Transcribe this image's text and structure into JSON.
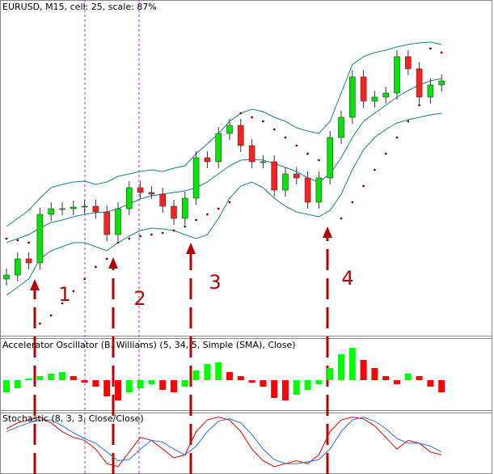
{
  "chart_data": [
    {
      "type": "candlestick",
      "title": "EURUSD, M15, cell: 25, scale: 87%",
      "ylim": [
        0,
        415
      ],
      "open": [
        70,
        75,
        95,
        90,
        150,
        157,
        157,
        159,
        160,
        153,
        125,
        157,
        183,
        177,
        175,
        160,
        145,
        170,
        220,
        215,
        250,
        260,
        235,
        215,
        215,
        180,
        200,
        195,
        165,
        195,
        245,
        270,
        320,
        290,
        295,
        300,
        345,
        330,
        295,
        310
      ],
      "high": [
        83,
        103,
        103,
        158,
        165,
        165,
        167,
        168,
        168,
        161,
        165,
        191,
        191,
        185,
        183,
        168,
        178,
        228,
        228,
        258,
        268,
        268,
        243,
        223,
        223,
        208,
        208,
        203,
        203,
        253,
        278,
        328,
        328,
        303,
        308,
        353,
        353,
        338,
        318,
        323
      ],
      "low": [
        62,
        67,
        82,
        82,
        142,
        149,
        149,
        151,
        145,
        117,
        117,
        149,
        169,
        169,
        152,
        137,
        137,
        162,
        207,
        207,
        242,
        227,
        207,
        207,
        172,
        172,
        187,
        157,
        157,
        187,
        237,
        262,
        282,
        282,
        287,
        292,
        322,
        287,
        287,
        302
      ],
      "close": [
        75,
        95,
        90,
        150,
        157,
        157,
        159,
        160,
        153,
        125,
        157,
        183,
        177,
        175,
        160,
        145,
        170,
        220,
        215,
        250,
        260,
        235,
        215,
        215,
        180,
        200,
        195,
        165,
        195,
        245,
        270,
        320,
        290,
        295,
        300,
        345,
        330,
        295,
        310,
        315
      ],
      "up_color": "#00e600",
      "down_color": "#ff2020",
      "wick_color": "#333333",
      "bands": {
        "color": "#1a7f8a",
        "upper": [
          135,
          145,
          155,
          170,
          183,
          187,
          190,
          191,
          187,
          190,
          197,
          200,
          203,
          205,
          203,
          207,
          210,
          225,
          237,
          250,
          265,
          275,
          280,
          277,
          270,
          265,
          257,
          253,
          250,
          265,
          300,
          335,
          345,
          350,
          353,
          357,
          360,
          362,
          363,
          360
        ],
        "middle": [
          115,
          120,
          125,
          133,
          140,
          143,
          147,
          150,
          152,
          153,
          157,
          163,
          169,
          173,
          175,
          177,
          179,
          183,
          190,
          200,
          210,
          217,
          218,
          217,
          213,
          208,
          203,
          195,
          190,
          200,
          220,
          245,
          265,
          275,
          285,
          295,
          303,
          310,
          315,
          318
        ],
        "lower": [
          50,
          60,
          70,
          95,
          105,
          110,
          115,
          115,
          110,
          105,
          115,
          123,
          130,
          133,
          132,
          130,
          125,
          120,
          125,
          145,
          170,
          185,
          190,
          183,
          170,
          160,
          153,
          150,
          147,
          155,
          175,
          205,
          230,
          245,
          255,
          263,
          267,
          270,
          273,
          275
        ]
      },
      "sar": {
        "color": "#8b0000",
        "values": [
          120,
          118,
          115,
          15,
          25,
          40,
          55,
          70,
          85,
          95,
          115,
          120,
          123,
          125,
          127,
          130,
          135,
          143,
          150,
          157,
          165,
          275,
          270,
          265,
          255,
          245,
          235,
          225,
          217,
          125,
          145,
          165,
          185,
          205,
          225,
          245,
          265,
          285,
          355,
          350
        ]
      },
      "annotations": [
        "1",
        "2",
        "3",
        "4"
      ]
    },
    {
      "type": "bar",
      "title": "Accelerator Oscillator (B. Williams) (5, 34, 5, Simple (SMA), Close)",
      "ylim": [
        -35,
        52
      ],
      "up_color": "#00ff00",
      "down_color": "#ff0000",
      "values": [
        -15,
        -10,
        2,
        5,
        8,
        10,
        5,
        -3,
        -8,
        -20,
        -25,
        -15,
        -10,
        -5,
        -12,
        -15,
        -8,
        12,
        20,
        22,
        10,
        5,
        -3,
        -8,
        -22,
        -25,
        -18,
        -12,
        -5,
        15,
        32,
        40,
        25,
        15,
        5,
        -5,
        8,
        5,
        -8,
        -15
      ]
    },
    {
      "type": "line",
      "title": "Stochastic (8, 3, 3, Close/Close)",
      "ylim": [
        0,
        100
      ],
      "series": [
        {
          "color": "#e00000",
          "values": [
            75,
            85,
            90,
            95,
            85,
            70,
            60,
            55,
            40,
            15,
            10,
            35,
            60,
            55,
            40,
            25,
            30,
            70,
            90,
            95,
            90,
            70,
            40,
            20,
            10,
            15,
            20,
            15,
            30,
            70,
            90,
            95,
            92,
            80,
            60,
            40,
            55,
            50,
            35,
            30
          ]
        },
        {
          "color": "#2a6fe8",
          "values": [
            70,
            78,
            85,
            90,
            90,
            80,
            68,
            58,
            50,
            35,
            20,
            22,
            40,
            55,
            52,
            40,
            30,
            45,
            70,
            88,
            92,
            85,
            65,
            40,
            22,
            15,
            15,
            18,
            22,
            40,
            70,
            90,
            95,
            88,
            75,
            58,
            50,
            50,
            45,
            35
          ]
        }
      ]
    }
  ]
}
